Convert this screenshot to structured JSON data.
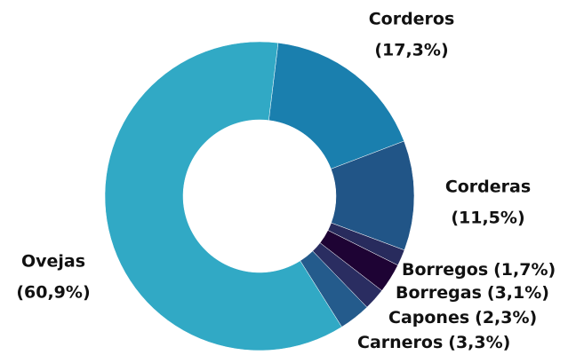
{
  "chart_data": {
    "type": "donut",
    "categories": [
      "Corderos",
      "Corderas",
      "Borregos",
      "Borregas",
      "Capones",
      "Carneros",
      "Ovejas"
    ],
    "values": [
      17.3,
      11.5,
      1.7,
      3.1,
      2.3,
      3.3,
      60.9
    ],
    "value_labels": [
      "(17,3%)",
      "(11,5%)",
      "(1,7%)",
      "(3,1%)",
      "(2,3%)",
      "(3,3%)",
      "(60,9%)"
    ],
    "colors": [
      "#1a7fae",
      "#215587",
      "#282b5d",
      "#1e0334",
      "#2a2d61",
      "#245b8c",
      "#31a9c5"
    ]
  }
}
